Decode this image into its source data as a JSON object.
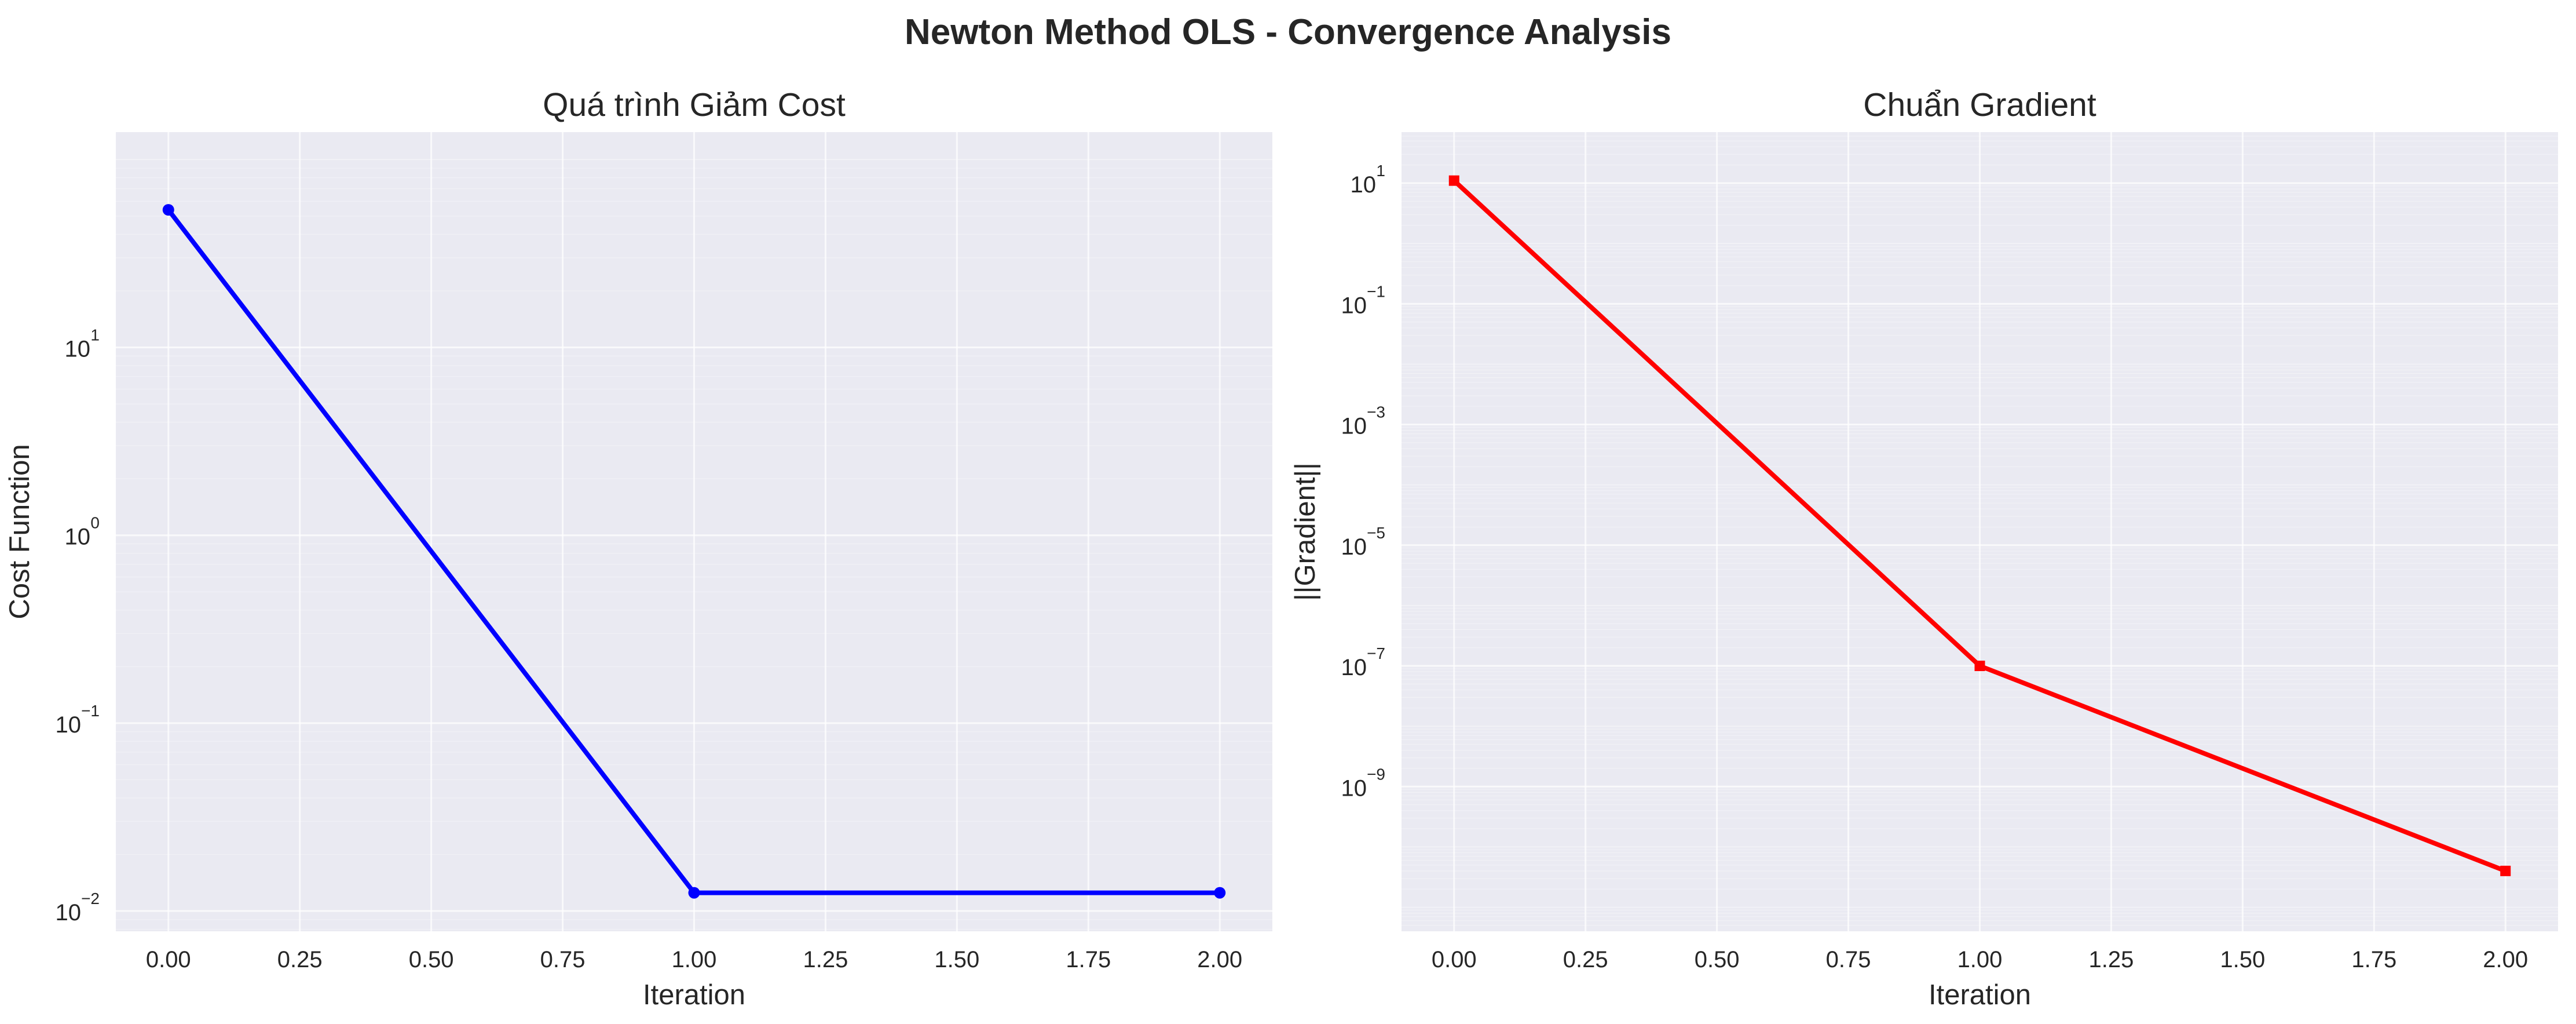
{
  "figure": {
    "title": "Newton Method OLS - Convergence Analysis"
  },
  "chart_data": [
    {
      "type": "line",
      "title": "Quá trình Giảm Cost",
      "xlabel": "Iteration",
      "ylabel": "Cost Function",
      "yscale": "log",
      "grid": true,
      "xlim": [
        -0.1,
        2.1
      ],
      "ylim": [
        0.0078,
        140
      ],
      "xticks": [
        "0.00",
        "0.25",
        "0.50",
        "0.75",
        "1.00",
        "1.25",
        "1.50",
        "1.75",
        "2.00"
      ],
      "yticks_exp": [
        -2,
        -1,
        0,
        1
      ],
      "series": [
        {
          "color": "#0000ff",
          "marker": "circle",
          "x": [
            0,
            1,
            2
          ],
          "y": [
            54,
            0.0125,
            0.0125
          ]
        }
      ]
    },
    {
      "type": "line",
      "title": "Chuẩn Gradient",
      "xlabel": "Iteration",
      "ylabel": "||Gradient||",
      "yscale": "log",
      "grid": true,
      "xlim": [
        -0.1,
        2.1
      ],
      "ylim": [
        4e-12,
        70
      ],
      "xticks": [
        "0.00",
        "0.25",
        "0.50",
        "0.75",
        "1.00",
        "1.25",
        "1.50",
        "1.75",
        "2.00"
      ],
      "yticks_exp": [
        -9,
        -7,
        -5,
        -3,
        -1,
        1
      ],
      "series": [
        {
          "color": "#ff0000",
          "marker": "square",
          "x": [
            0,
            1,
            2
          ],
          "y": [
            11,
            1e-07,
            4e-11
          ]
        }
      ]
    }
  ]
}
